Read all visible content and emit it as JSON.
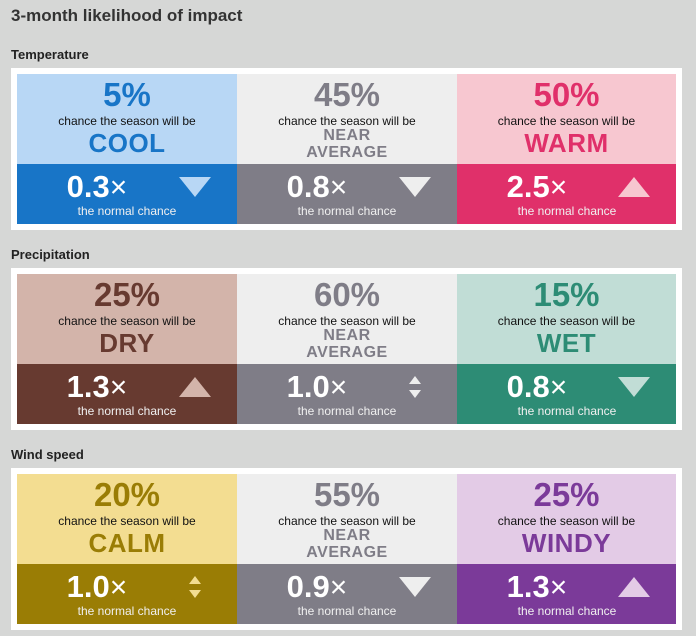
{
  "page_title": "3-month likelihood of impact",
  "sections": [
    {
      "title": "Temperature",
      "cards": [
        {
          "percent": "5%",
          "chance_text": "chance the season will be",
          "category_line1": "COOL",
          "category_line2": "",
          "ratio": "0.3",
          "times": "×",
          "normal_text": "the normal chance",
          "arrow": "arrow-down-icon",
          "colors": {
            "top_bg": "#b8d7f5",
            "accent": "#1875c7",
            "bottom_bg": "#1875c7",
            "arrow_fill": "#b8d7f5"
          }
        },
        {
          "percent": "45%",
          "chance_text": "chance the season will be",
          "category_line1": "NEAR",
          "category_line2": "AVERAGE",
          "ratio": "0.8",
          "times": "×",
          "normal_text": "the normal chance",
          "arrow": "arrow-down-icon",
          "colors": {
            "top_bg": "#eeeeee",
            "accent": "#7f7d87",
            "bottom_bg": "#7f7d87",
            "arrow_fill": "#eeeeee"
          }
        },
        {
          "percent": "50%",
          "chance_text": "chance the season will be",
          "category_line1": "WARM",
          "category_line2": "",
          "ratio": "2.5",
          "times": "×",
          "normal_text": "the normal chance",
          "arrow": "arrow-up-icon",
          "colors": {
            "top_bg": "#f7c7d0",
            "accent": "#e0306a",
            "bottom_bg": "#e0306a",
            "arrow_fill": "#f7c7d0"
          }
        }
      ]
    },
    {
      "title": "Precipitation",
      "cards": [
        {
          "percent": "25%",
          "chance_text": "chance the season will be",
          "category_line1": "DRY",
          "category_line2": "",
          "ratio": "1.3",
          "times": "×",
          "normal_text": "the normal chance",
          "arrow": "arrow-up-icon",
          "colors": {
            "top_bg": "#d3b4aa",
            "accent": "#673a30",
            "bottom_bg": "#673a30",
            "arrow_fill": "#d3b4aa"
          }
        },
        {
          "percent": "60%",
          "chance_text": "chance the season will be",
          "category_line1": "NEAR",
          "category_line2": "AVERAGE",
          "ratio": "1.0",
          "times": "×",
          "normal_text": "the normal chance",
          "arrow": "arrow-updown-icon",
          "colors": {
            "top_bg": "#eeeeee",
            "accent": "#7f7d87",
            "bottom_bg": "#7f7d87",
            "arrow_fill": "#eeeeee"
          }
        },
        {
          "percent": "15%",
          "chance_text": "chance the season will be",
          "category_line1": "WET",
          "category_line2": "",
          "ratio": "0.8",
          "times": "×",
          "normal_text": "the normal chance",
          "arrow": "arrow-down-icon",
          "colors": {
            "top_bg": "#c1ddd6",
            "accent": "#2d8c75",
            "bottom_bg": "#2d8c75",
            "arrow_fill": "#c1ddd6"
          }
        }
      ]
    },
    {
      "title": "Wind speed",
      "cards": [
        {
          "percent": "20%",
          "chance_text": "chance the season will be",
          "category_line1": "CALM",
          "category_line2": "",
          "ratio": "1.0",
          "times": "×",
          "normal_text": "the normal chance",
          "arrow": "arrow-updown-icon",
          "colors": {
            "top_bg": "#f3dd91",
            "accent": "#9a7d05",
            "bottom_bg": "#9a7d05",
            "arrow_fill": "#f3dd91"
          }
        },
        {
          "percent": "55%",
          "chance_text": "chance the season will be",
          "category_line1": "NEAR",
          "category_line2": "AVERAGE",
          "ratio": "0.9",
          "times": "×",
          "normal_text": "the normal chance",
          "arrow": "arrow-down-icon",
          "colors": {
            "top_bg": "#eeeeee",
            "accent": "#7f7d87",
            "bottom_bg": "#7f7d87",
            "arrow_fill": "#eeeeee"
          }
        },
        {
          "percent": "25%",
          "chance_text": "chance the season will be",
          "category_line1": "WINDY",
          "category_line2": "",
          "ratio": "1.3",
          "times": "×",
          "normal_text": "the normal chance",
          "arrow": "arrow-up-icon",
          "colors": {
            "top_bg": "#e3cbe6",
            "accent": "#7b3a99",
            "bottom_bg": "#7b3a99",
            "arrow_fill": "#e3cbe6"
          }
        }
      ]
    }
  ]
}
